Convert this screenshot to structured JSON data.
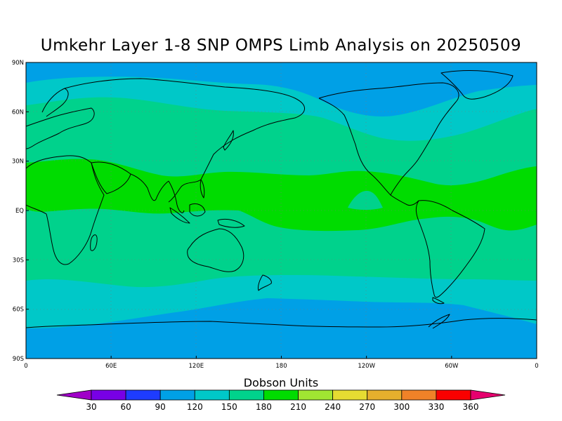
{
  "title": "Umkehr Layer 1-8 SNP OMPS Limb Analysis on 20250509",
  "colorbar": {
    "title": "Dobson Units",
    "labels": [
      "30",
      "60",
      "90",
      "120",
      "150",
      "180",
      "210",
      "240",
      "270",
      "300",
      "330",
      "360"
    ],
    "colors": [
      "#a000c8",
      "#7800e6",
      "#1e3cff",
      "#00a0e6",
      "#00c8c8",
      "#00d28c",
      "#00dc00",
      "#a0e632",
      "#e6dc32",
      "#e6af2d",
      "#f08228",
      "#fa0000",
      "#e6006e"
    ]
  },
  "axes": {
    "lat_labels": [
      "90N",
      "60N",
      "30N",
      "EQ",
      "30S",
      "60S",
      "90S"
    ],
    "lon_labels": [
      "0",
      "60E",
      "120E",
      "180",
      "120W",
      "60W",
      "0"
    ]
  },
  "bands": {
    "c120": "#00a0e6",
    "c150": "#00c8c8",
    "c180": "#00d28c",
    "c210": "#00dc00"
  }
}
